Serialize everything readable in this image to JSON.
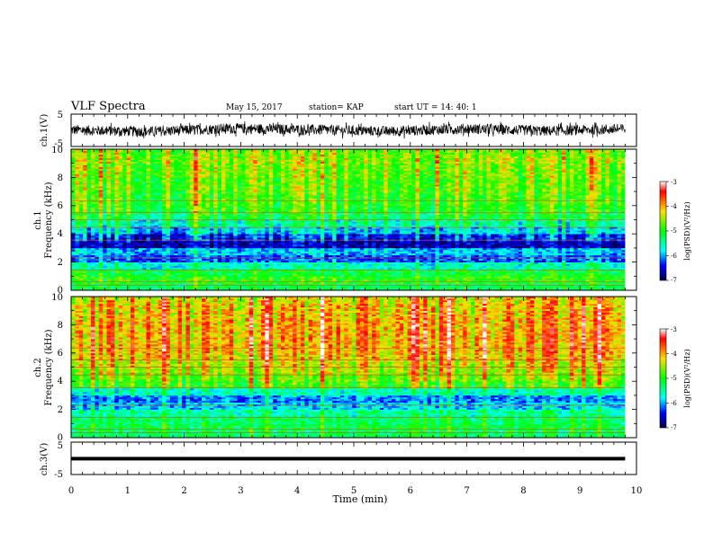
{
  "header": {
    "title": "VLF Spectra",
    "date": "May 15, 2017",
    "station": "station= KAP",
    "start": "start  UT  =   14: 40: 1"
  },
  "chart_data": {
    "type": "heatmap",
    "x_axis": {
      "label": "Time  (min)",
      "range": [
        0,
        10
      ],
      "ticks": [
        "0",
        "1",
        "2",
        "3",
        "4",
        "5",
        "6",
        "7",
        "8",
        "9",
        "10"
      ]
    },
    "panels": [
      {
        "type": "line",
        "ylabel": "ch.1(V)",
        "ylim": [
          -5,
          5
        ],
        "yticks": [
          "5",
          "-5"
        ],
        "series": [
          {
            "values": [
              0.1,
              -0.4,
              0.6,
              0.2,
              -0.3,
              0.5,
              -0.2,
              0.4
            ]
          }
        ]
      },
      {
        "type": "heatmap",
        "ylabel_line1": "ch.1",
        "ylabel_line2": "Frequency  (kHz)",
        "ylim": [
          0,
          10
        ],
        "yticks": [
          "0",
          "2",
          "4",
          "6",
          "8",
          "10"
        ],
        "colorbar": {
          "label": "log(PSD)(V²/Hz)",
          "range": [
            -7,
            -3
          ],
          "ticks": [
            "-3",
            "-4",
            "-5",
            "-6",
            "-7"
          ]
        },
        "band_levels": [
          {
            "freq_khz": 0.25,
            "log_psd": -5.2
          },
          {
            "freq_khz": 0.75,
            "log_psd": -4.9
          },
          {
            "freq_khz": 1.25,
            "log_psd": -5.1
          },
          {
            "freq_khz": 1.75,
            "log_psd": -5.6
          },
          {
            "freq_khz": 2.25,
            "log_psd": -6.2
          },
          {
            "freq_khz": 2.75,
            "log_psd": -5.9
          },
          {
            "freq_khz": 3.25,
            "log_psd": -6.6
          },
          {
            "freq_khz": 3.75,
            "log_psd": -6.3
          },
          {
            "freq_khz": 4.25,
            "log_psd": -5.8
          },
          {
            "freq_khz": 4.75,
            "log_psd": -5.4
          },
          {
            "freq_khz": 5.25,
            "log_psd": -5.1
          },
          {
            "freq_khz": 5.75,
            "log_psd": -4.9
          },
          {
            "freq_khz": 6.25,
            "log_psd": -4.8
          },
          {
            "freq_khz": 6.75,
            "log_psd": -4.8
          },
          {
            "freq_khz": 7.25,
            "log_psd": -4.7
          },
          {
            "freq_khz": 7.75,
            "log_psd": -4.7
          },
          {
            "freq_khz": 8.25,
            "log_psd": -4.6
          },
          {
            "freq_khz": 8.75,
            "log_psd": -4.6
          },
          {
            "freq_khz": 9.25,
            "log_psd": -4.5
          },
          {
            "freq_khz": 9.75,
            "log_psd": -4.6
          }
        ]
      },
      {
        "type": "heatmap",
        "ylabel_line1": "ch.2",
        "ylabel_line2": "Frequency  (kHz)",
        "ylim": [
          0,
          10
        ],
        "yticks": [
          "0",
          "2",
          "4",
          "6",
          "8",
          "10"
        ],
        "colorbar": {
          "label": "log(PSD)(V²/Hz)",
          "range": [
            -7,
            -3
          ],
          "ticks": [
            "-3",
            "-4",
            "-5",
            "-6",
            "-7"
          ]
        },
        "band_levels": [
          {
            "freq_khz": 0.25,
            "log_psd": -5.3
          },
          {
            "freq_khz": 0.75,
            "log_psd": -5.2
          },
          {
            "freq_khz": 1.25,
            "log_psd": -5.3
          },
          {
            "freq_khz": 1.75,
            "log_psd": -5.5
          },
          {
            "freq_khz": 2.25,
            "log_psd": -5.9
          },
          {
            "freq_khz": 2.75,
            "log_psd": -6.1
          },
          {
            "freq_khz": 3.25,
            "log_psd": -5.6
          },
          {
            "freq_khz": 3.75,
            "log_psd": -4.9
          },
          {
            "freq_khz": 4.25,
            "log_psd": -4.7
          },
          {
            "freq_khz": 4.75,
            "log_psd": -4.5
          },
          {
            "freq_khz": 5.25,
            "log_psd": -4.4
          },
          {
            "freq_khz": 5.75,
            "log_psd": -4.2
          },
          {
            "freq_khz": 6.25,
            "log_psd": -4.1
          },
          {
            "freq_khz": 6.75,
            "log_psd": -4.1
          },
          {
            "freq_khz": 7.25,
            "log_psd": -4.1
          },
          {
            "freq_khz": 7.75,
            "log_psd": -4.1
          },
          {
            "freq_khz": 8.25,
            "log_psd": -4.1
          },
          {
            "freq_khz": 8.75,
            "log_psd": -4.2
          },
          {
            "freq_khz": 9.25,
            "log_psd": -4.2
          },
          {
            "freq_khz": 9.75,
            "log_psd": -4.3
          }
        ]
      },
      {
        "type": "line",
        "ylabel": "ch.3(V)",
        "ylim": [
          -5,
          5
        ],
        "yticks": [
          "5",
          "-5"
        ],
        "series": [
          {
            "values": [
              -0.1,
              -0.1,
              -0.1,
              -0.1,
              -0.1,
              -0.1,
              -0.1,
              -0.1
            ]
          }
        ]
      }
    ]
  }
}
